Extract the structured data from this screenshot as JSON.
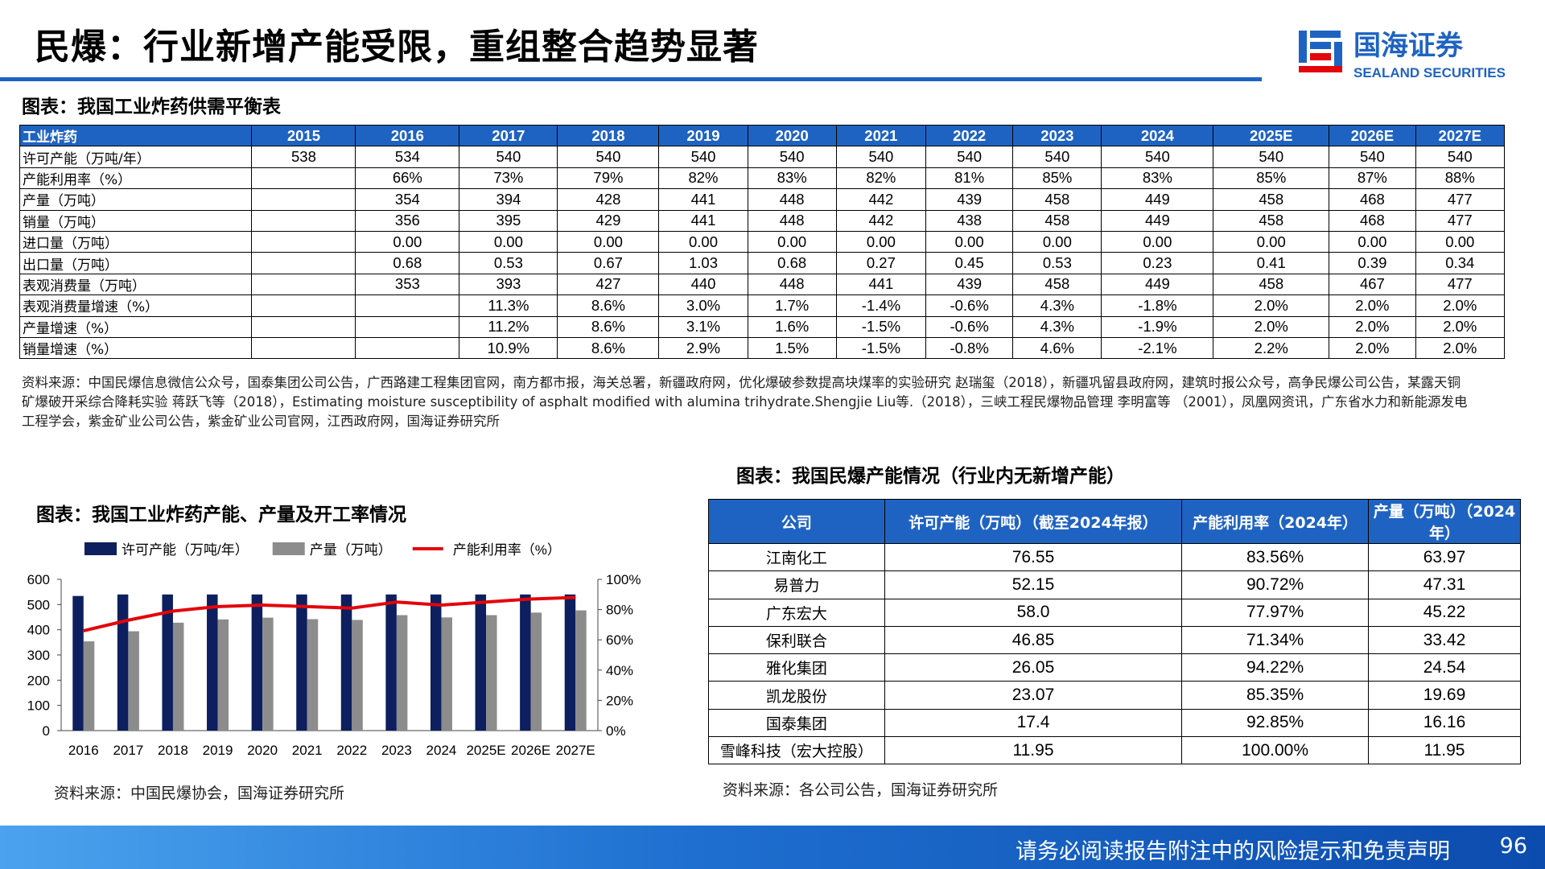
{
  "header": {
    "title": "民爆：行业新增产能受限，重组整合趋势显著",
    "logo_cn": "国海证券",
    "logo_en": "SEALAND SECURITIES"
  },
  "table1": {
    "title": "图表：我国工业炸药供需平衡表",
    "header": [
      "工业炸药",
      "2015",
      "2016",
      "2017",
      "2018",
      "2019",
      "2020",
      "2021",
      "2022",
      "2023",
      "2024",
      "2025E",
      "2026E",
      "2027E"
    ],
    "rows": [
      [
        "许可产能（万吨/年）",
        "538",
        "534",
        "540",
        "540",
        "540",
        "540",
        "540",
        "540",
        "540",
        "540",
        "540",
        "540",
        "540"
      ],
      [
        "产能利用率（%）",
        null,
        "66%",
        "73%",
        "79%",
        "82%",
        "83%",
        "82%",
        "81%",
        "85%",
        "83%",
        "85%",
        "87%",
        "88%"
      ],
      [
        "产量（万吨）",
        null,
        "354",
        "394",
        "428",
        "441",
        "448",
        "442",
        "439",
        "458",
        "449",
        "458",
        "468",
        "477"
      ],
      [
        "销量（万吨）",
        null,
        "356",
        "395",
        "429",
        "441",
        "448",
        "442",
        "438",
        "458",
        "449",
        "458",
        "468",
        "477"
      ],
      [
        "进口量（万吨）",
        null,
        "0.00",
        "0.00",
        "0.00",
        "0.00",
        "0.00",
        "0.00",
        "0.00",
        "0.00",
        "0.00",
        "0.00",
        "0.00",
        "0.00"
      ],
      [
        "出口量（万吨）",
        null,
        "0.68",
        "0.53",
        "0.67",
        "1.03",
        "0.68",
        "0.27",
        "0.45",
        "0.53",
        "0.23",
        "0.41",
        "0.39",
        "0.34"
      ],
      [
        "表观消费量（万吨）",
        null,
        "353",
        "393",
        "427",
        "440",
        "448",
        "441",
        "439",
        "458",
        "449",
        "458",
        "467",
        "477"
      ],
      [
        "表观消费量增速（%）",
        null,
        null,
        "11.3%",
        "8.6%",
        "3.0%",
        "1.7%",
        "-1.4%",
        "-0.6%",
        "4.3%",
        "-1.8%",
        "2.0%",
        "2.0%",
        "2.0%"
      ],
      [
        "产量增速（%）",
        null,
        null,
        "11.2%",
        "8.6%",
        "3.1%",
        "1.6%",
        "-1.5%",
        "-0.6%",
        "4.3%",
        "-1.9%",
        "2.0%",
        "2.0%",
        "2.0%"
      ],
      [
        "销量增速（%）",
        null,
        null,
        "10.9%",
        "8.6%",
        "2.9%",
        "1.5%",
        "-1.5%",
        "-0.8%",
        "4.6%",
        "-2.1%",
        "2.2%",
        "2.0%",
        "2.0%"
      ]
    ],
    "source": "资料来源：中国民爆信息微信公众号，国泰集团公司公告，广西路建工程集团官网，南方都市报，海关总署，新疆政府网，优化爆破参数提高块煤率的实验研究 赵瑞玺（2018），新疆巩留县政府网，建筑时报公众号，高争民爆公司公告，某露天铜矿爆破开采综合降耗实验 蒋跃飞等（2018），Estimating moisture susceptibility of asphalt modified with alumina trihydrate.Shengjie Liu等.（2018），三峡工程民爆物品管理 李明富等 （2001），凤凰网资讯，广东省水力和新能源发电工程学会，紫金矿业公司公告，紫金矿业公司官网，江西政府网，国海证券研究所"
  },
  "table2": {
    "title": "图表：我国民爆产能情况（行业内无新增产能）",
    "header": [
      "公司",
      "许可产能（万吨）（截至2024年报）",
      "产能利用率（2024年）",
      "产量（万吨）（2024年）"
    ],
    "rows": [
      [
        "江南化工",
        "76.55",
        "83.56%",
        "63.97"
      ],
      [
        "易普力",
        "52.15",
        "90.72%",
        "47.31"
      ],
      [
        "广东宏大",
        "58.0",
        "77.97%",
        "45.22"
      ],
      [
        "保利联合",
        "46.85",
        "71.34%",
        "33.42"
      ],
      [
        "雅化集团",
        "26.05",
        "94.22%",
        "24.54"
      ],
      [
        "凯龙股份",
        "23.07",
        "85.35%",
        "19.69"
      ],
      [
        "国泰集团",
        "17.4",
        "92.85%",
        "16.16"
      ],
      [
        "雪峰科技（宏大控股）",
        "11.95",
        "100.00%",
        "11.95"
      ]
    ],
    "source": "资料来源：各公司公告，国海证券研究所"
  },
  "chart_data": {
    "type": "bar",
    "title": "图表：我国工业炸药产能、产量及开工率情况",
    "categories": [
      "2016",
      "2017",
      "2018",
      "2019",
      "2020",
      "2021",
      "2022",
      "2023",
      "2024",
      "2025E",
      "2026E",
      "2027E"
    ],
    "series": [
      {
        "name": "许可产能（万吨/年）",
        "color": "#0d1f5e",
        "values": [
          534,
          540,
          540,
          540,
          540,
          540,
          540,
          540,
          540,
          540,
          540,
          540
        ]
      },
      {
        "name": "产量（万吨）",
        "color": "#8c8c8c",
        "values": [
          354,
          394,
          428,
          441,
          448,
          442,
          439,
          458,
          449,
          458,
          468,
          477
        ]
      },
      {
        "name": "产能利用率（%）",
        "color": "#e3050b",
        "type": "line",
        "axis": "y2",
        "values": [
          66,
          73,
          79,
          82,
          83,
          82,
          81,
          85,
          83,
          85,
          87,
          88
        ]
      }
    ],
    "ylim": [
      0,
      600
    ],
    "yticks": [
      0,
      100,
      200,
      300,
      400,
      500,
      600
    ],
    "y2lim": [
      0,
      100
    ],
    "y2ticks": [
      {
        "value": 0,
        "label": "0%"
      },
      {
        "value": 20,
        "label": "20%"
      },
      {
        "value": 40,
        "label": "40%"
      },
      {
        "value": 60,
        "label": "60%"
      },
      {
        "value": 80,
        "label": "80%"
      },
      {
        "value": 100,
        "label": "100%"
      }
    ],
    "source": "资料来源：中国民爆协会，国海证券研究所"
  },
  "footer": {
    "disclaimer": "请务必阅读报告附注中的风险提示和免责声明",
    "page": "96"
  }
}
